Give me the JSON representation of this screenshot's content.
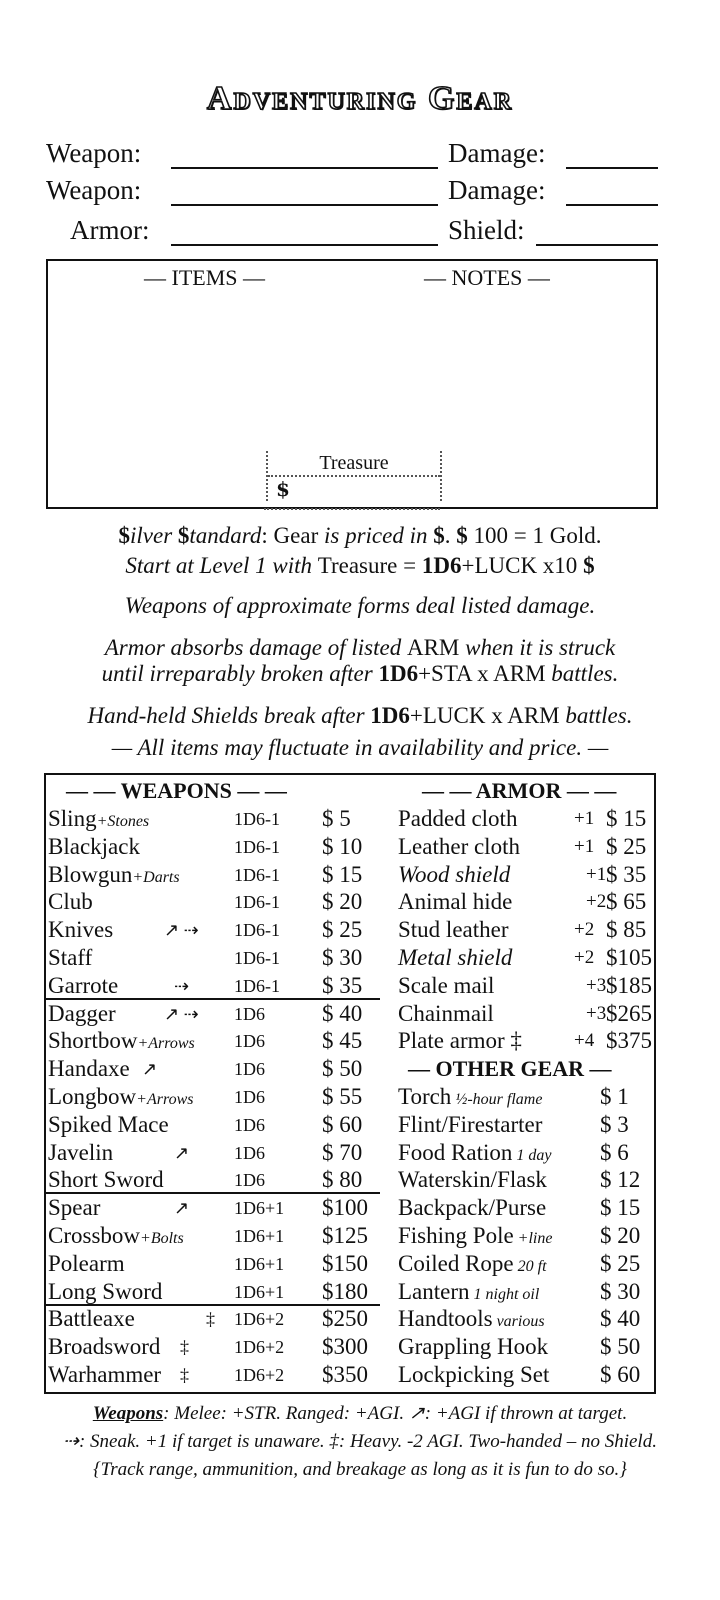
{
  "title": "Adventuring Gear",
  "fields": [
    {
      "left": "Weapon:",
      "right": "Damage:"
    },
    {
      "left": "Weapon:",
      "right": "Damage:"
    },
    {
      "left": "Armor:",
      "right": "Shield:"
    }
  ],
  "box": {
    "items": "— ITEMS —",
    "notes": "— NOTES —",
    "treasure": "Treasure",
    "currency": "$"
  },
  "rules": {
    "l1a": "$",
    "l1b": "ilver ",
    "l1c": "$",
    "l1d": "tandard",
    "l1e": ": Gear ",
    "l1f": "is priced in ",
    "l1g": "$",
    "l1h": ".   ",
    "l1i": "$",
    "l1j": " 100 = 1 Gold.",
    "l2a": "Start at Level 1 with ",
    "l2b": "Treasure = ",
    "l2c": "1D6",
    "l2d": "+LUCK x10  ",
    "l2e": "$",
    ".": ".",
    "l3": "Weapons of approximate forms deal listed damage.",
    "l4a": "Armor absorbs damage of listed ",
    "l4b": "ARM",
    "l4c": " when it is struck",
    "l5a": "until irreparably broken after ",
    "l5b": "1D6",
    "l5c": "+STA x ARM ",
    "l5d": "battles.",
    "l6a": "Hand-held Shields break after ",
    "l6b": "1D6",
    "l6c": "+LUCK x ARM ",
    "l6d": "battles.",
    "l7": "— All items may fluctuate in availability and price. —"
  },
  "weapons_header": "— — WEAPONS — —",
  "armor_header": "— — ARMOR — —",
  "other_header": "— OTHER GEAR —",
  "weapons": [
    {
      "name": "Sling",
      "sub": "+Stones",
      "dmg": "1D6-1",
      "price": "$  5"
    },
    {
      "name": "Blackjack",
      "dmg": "1D6-1",
      "price": "$ 10"
    },
    {
      "name": "Blowgun",
      "sub": "+Darts",
      "dmg": "1D6-1",
      "price": "$ 15"
    },
    {
      "name": "Club",
      "dmg": "1D6-1",
      "price": "$ 20"
    },
    {
      "name": "Knives",
      "sym": "↗ ⇢",
      "dmg": "1D6-1",
      "price": "$ 25"
    },
    {
      "name": "Staff",
      "dmg": "1D6-1",
      "price": "$ 30"
    },
    {
      "name": "Garrote",
      "sym": "⇢",
      "dmg": "1D6-1",
      "price": "$ 35",
      "ul": true
    },
    {
      "name": "Dagger",
      "sym": "↗ ⇢",
      "dmg": "1D6",
      "price": "$ 40"
    },
    {
      "name": "Shortbow",
      "sub": "+Arrows",
      "dmg": "1D6",
      "price": "$ 45"
    },
    {
      "name": "Handaxe",
      "sym": "↗",
      "dmg": "1D6",
      "price": "$ 50"
    },
    {
      "name": "Longbow",
      "sub": "+Arrows",
      "dmg": "1D6",
      "price": "$ 55"
    },
    {
      "name": "Spiked Mace",
      "dmg": "1D6",
      "price": "$ 60"
    },
    {
      "name": "Javelin",
      "sym": "↗",
      "dmg": "1D6",
      "price": "$ 70"
    },
    {
      "name": "Short Sword",
      "dmg": "1D6",
      "price": "$ 80",
      "ul": true
    },
    {
      "name": "Spear",
      "sym": "↗",
      "dmg": "1D6+1",
      "price": "$100"
    },
    {
      "name": "Crossbow",
      "sub": "+Bolts",
      "dmg": "1D6+1",
      "price": "$125"
    },
    {
      "name": "Polearm",
      "dmg": "1D6+1",
      "price": "$150"
    },
    {
      "name": "Long Sword",
      "dmg": "1D6+1",
      "price": "$180",
      "ul": true
    },
    {
      "name": "Battleaxe",
      "sym": "‡",
      "dmg": "1D6+2",
      "price": "$250"
    },
    {
      "name": "Broadsword",
      "sym": "‡",
      "dmg": "1D6+2",
      "price": "$300"
    },
    {
      "name": "Warhammer",
      "sym": "‡",
      "dmg": "1D6+2",
      "price": "$350"
    }
  ],
  "armor": [
    {
      "name": "Padded cloth",
      "arm": "+1",
      "price": "$ 15"
    },
    {
      "name": "Leather cloth",
      "arm": "+1",
      "price": "$ 25"
    },
    {
      "name": "Wood shield",
      "arm": "+1",
      "price": "$ 35",
      "italic": true
    },
    {
      "name": "Animal hide",
      "arm": "+2",
      "price": "$ 65"
    },
    {
      "name": "Stud leather",
      "arm": "+2",
      "price": "$ 85"
    },
    {
      "name": "Metal shield",
      "arm": "+2",
      "price": "$105",
      "italic": true
    },
    {
      "name": "Scale mail",
      "arm": "+3",
      "price": "$185"
    },
    {
      "name": "Chainmail",
      "arm": "+3",
      "price": "$265"
    },
    {
      "name": "Plate armor ‡",
      "arm": "+4",
      "price": "$375"
    }
  ],
  "other": [
    {
      "name": "Torch",
      "sub": " ½-hour flame",
      "price": "$  1"
    },
    {
      "name": "Flint/Firestarter",
      "price": "$  3"
    },
    {
      "name": "Food Ration",
      "sub": " 1 day",
      "price": "$  6"
    },
    {
      "name": "Waterskin/Flask",
      "price": "$ 12"
    },
    {
      "name": "Backpack/Purse",
      "price": "$ 15"
    },
    {
      "name": "Fishing Pole",
      "sub": " +line",
      "price": "$ 20"
    },
    {
      "name": "Coiled Rope",
      "sub": " 20 ft",
      "price": "$ 25"
    },
    {
      "name": "Lantern",
      "sub": " 1 night oil",
      "price": "$ 30"
    },
    {
      "name": "Handtools",
      "sub": " various",
      "price": "$ 40"
    },
    {
      "name": "Grappling Hook",
      "price": "$ 50"
    },
    {
      "name": "Lockpicking Set",
      "price": "$ 60"
    }
  ],
  "footer": {
    "f1a": "Weapons",
    "f1b": ":  Melee: +STR.  Ranged: +AGI.    ↗: +AGI if thrown at target.",
    "f2": "⇢: Sneak. +1 if target is unaware. ‡: Heavy. -2 AGI. Two-handed – no Shield.",
    "f3": "{Track range, ammunition, and breakage as long as it is fun to do so.}"
  }
}
